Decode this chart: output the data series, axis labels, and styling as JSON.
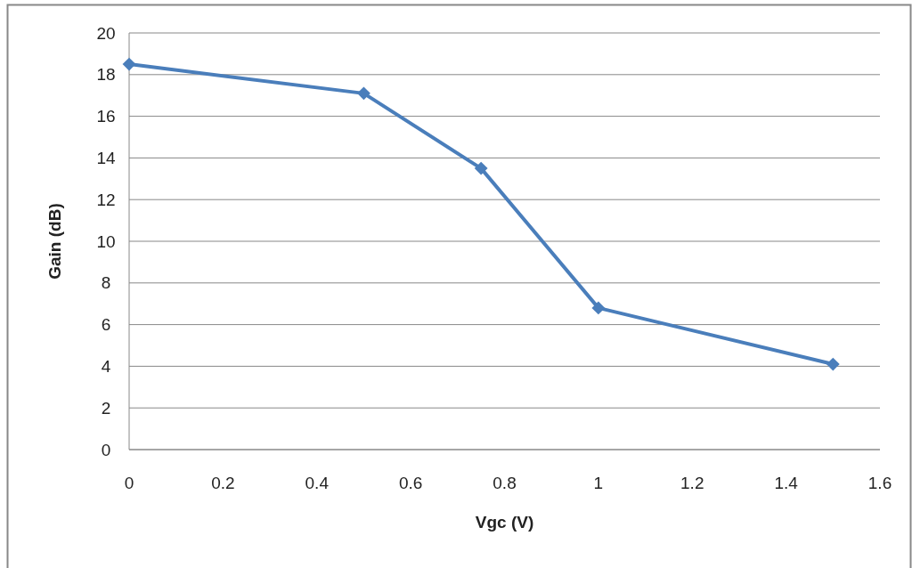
{
  "chart_data": {
    "type": "line",
    "xlabel": "Vgc (V)",
    "ylabel": "Gain (dB)",
    "x": [
      0,
      0.5,
      0.75,
      1,
      1.5
    ],
    "series": [
      {
        "color": "#4a7ebb",
        "values": [
          18.5,
          17.1,
          13.5,
          6.8,
          4.1
        ]
      }
    ],
    "xlim": [
      0,
      1.6
    ],
    "xticks": [
      0,
      0.2,
      0.4,
      0.6,
      0.8,
      1,
      1.2,
      1.4,
      1.6
    ],
    "ylim": [
      0,
      20
    ],
    "yticks": [
      0,
      2,
      4,
      6,
      8,
      10,
      12,
      14,
      16,
      18,
      20
    ],
    "grid": "y",
    "marker": "diamond",
    "line_style": "solid"
  }
}
